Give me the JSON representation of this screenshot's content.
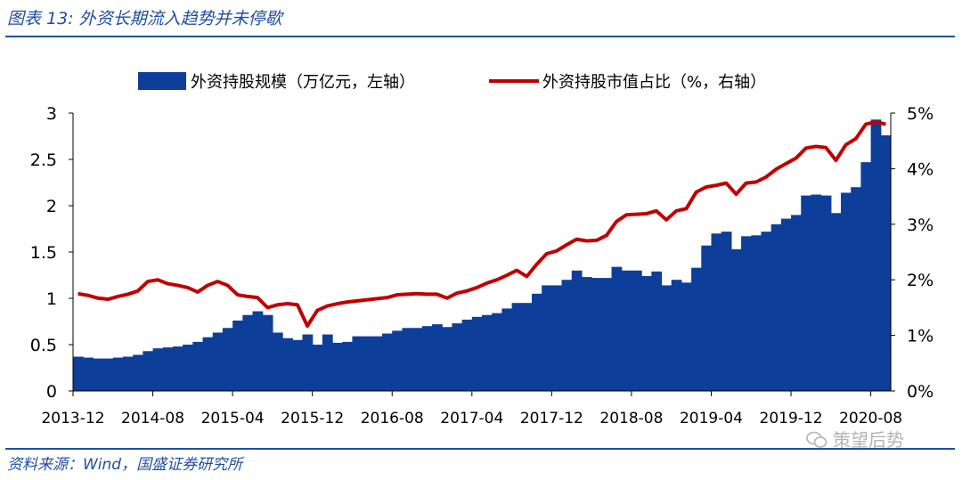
{
  "header": {
    "title": "图表 13: 外资长期流入趋势并未停歇"
  },
  "footer": {
    "source": "资料来源：Wind，国盛证券研究所",
    "watermark": "策望后势"
  },
  "chart_data": {
    "type": "bar+line",
    "x": [
      "2013-12",
      "2014-01",
      "2014-02",
      "2014-03",
      "2014-04",
      "2014-05",
      "2014-06",
      "2014-07",
      "2014-08",
      "2014-09",
      "2014-10",
      "2014-11",
      "2014-12",
      "2015-01",
      "2015-02",
      "2015-03",
      "2015-04",
      "2015-05",
      "2015-06",
      "2015-07",
      "2015-08",
      "2015-09",
      "2015-10",
      "2015-11",
      "2015-12",
      "2016-01",
      "2016-02",
      "2016-03",
      "2016-04",
      "2016-05",
      "2016-06",
      "2016-07",
      "2016-08",
      "2016-09",
      "2016-10",
      "2016-11",
      "2016-12",
      "2017-01",
      "2017-02",
      "2017-03",
      "2017-04",
      "2017-05",
      "2017-06",
      "2017-07",
      "2017-08",
      "2017-09",
      "2017-10",
      "2017-11",
      "2017-12",
      "2018-01",
      "2018-02",
      "2018-03",
      "2018-04",
      "2018-05",
      "2018-06",
      "2018-07",
      "2018-08",
      "2018-09",
      "2018-10",
      "2018-11",
      "2018-12",
      "2019-01",
      "2019-02",
      "2019-03",
      "2019-04",
      "2019-05",
      "2019-06",
      "2019-07",
      "2019-08",
      "2019-09",
      "2019-10",
      "2019-11",
      "2019-12",
      "2020-01",
      "2020-02",
      "2020-03",
      "2020-04",
      "2020-05",
      "2020-06",
      "2020-07",
      "2020-08",
      "2020-09"
    ],
    "x_tick_labels": [
      "2013-12",
      "2014-08",
      "2015-04",
      "2015-12",
      "2016-08",
      "2017-04",
      "2017-12",
      "2018-08",
      "2019-04",
      "2019-12",
      "2020-08"
    ],
    "series": [
      {
        "name": "外资持股规模（万亿元，左轴）",
        "type": "bar",
        "axis": "left",
        "color": "#0d3e9a",
        "values": [
          0.37,
          0.36,
          0.35,
          0.35,
          0.36,
          0.37,
          0.39,
          0.43,
          0.46,
          0.47,
          0.48,
          0.5,
          0.53,
          0.58,
          0.63,
          0.68,
          0.76,
          0.82,
          0.86,
          0.82,
          0.63,
          0.57,
          0.55,
          0.61,
          0.5,
          0.61,
          0.52,
          0.53,
          0.59,
          0.59,
          0.59,
          0.62,
          0.65,
          0.68,
          0.68,
          0.7,
          0.72,
          0.69,
          0.73,
          0.77,
          0.8,
          0.82,
          0.84,
          0.89,
          0.95,
          0.95,
          1.05,
          1.14,
          1.14,
          1.2,
          1.3,
          1.23,
          1.22,
          1.22,
          1.34,
          1.3,
          1.3,
          1.24,
          1.29,
          1.14,
          1.2,
          1.17,
          1.33,
          1.57,
          1.7,
          1.72,
          1.53,
          1.67,
          1.68,
          1.72,
          1.8,
          1.86,
          1.9,
          2.11,
          2.12,
          2.11,
          1.92,
          2.14,
          2.2,
          2.47,
          2.93,
          2.76
        ]
      },
      {
        "name": "外资持股市值占比（%，右轴）",
        "type": "line",
        "axis": "right",
        "color": "#c00000",
        "values": [
          1.75,
          1.72,
          1.67,
          1.65,
          1.7,
          1.74,
          1.8,
          1.97,
          2.0,
          1.93,
          1.9,
          1.86,
          1.78,
          1.9,
          1.97,
          1.9,
          1.73,
          1.7,
          1.68,
          1.5,
          1.55,
          1.57,
          1.55,
          1.17,
          1.45,
          1.53,
          1.57,
          1.6,
          1.62,
          1.64,
          1.66,
          1.68,
          1.73,
          1.74,
          1.75,
          1.74,
          1.74,
          1.67,
          1.76,
          1.8,
          1.86,
          1.94,
          2.0,
          2.08,
          2.17,
          2.06,
          2.28,
          2.47,
          2.52,
          2.63,
          2.73,
          2.7,
          2.71,
          2.8,
          3.05,
          3.17,
          3.18,
          3.19,
          3.24,
          3.08,
          3.24,
          3.28,
          3.58,
          3.67,
          3.7,
          3.74,
          3.54,
          3.74,
          3.76,
          3.85,
          3.99,
          4.09,
          4.19,
          4.37,
          4.4,
          4.38,
          4.15,
          4.43,
          4.54,
          4.8,
          4.84,
          4.8
        ]
      }
    ],
    "y_left": {
      "min": 0,
      "max": 3,
      "ticks": [
        "0",
        "0.5",
        "1",
        "1.5",
        "2",
        "2.5",
        "3"
      ]
    },
    "y_right": {
      "min": 0,
      "max": 5,
      "ticks": [
        "0%",
        "1%",
        "2%",
        "3%",
        "4%",
        "5%"
      ]
    },
    "legend_position": "top",
    "grid": false
  }
}
